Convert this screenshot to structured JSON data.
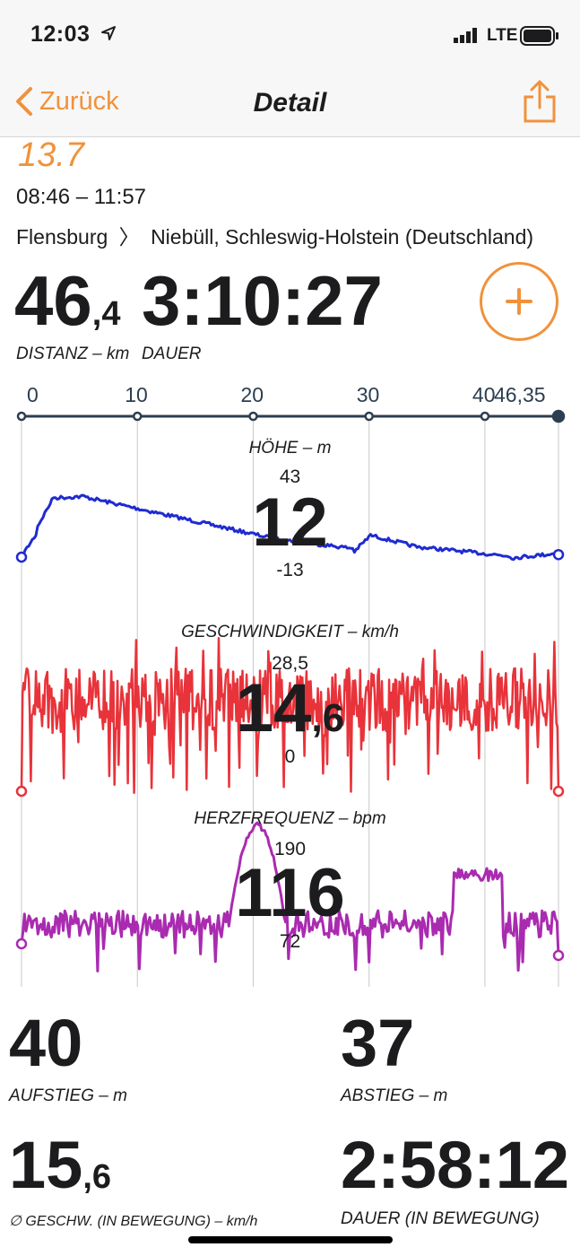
{
  "status": {
    "time": "12:03",
    "network": "LTE"
  },
  "nav": {
    "back_label": "Zurück",
    "title": "Detail"
  },
  "track": {
    "title": "13.7",
    "timespan": "08:46 – 11:57",
    "route_from": "Flensburg",
    "route_to": "Niebüll, Schleswig-Holstein (Deutschland)"
  },
  "summary": {
    "distance_int": "46",
    "distance_dec": ",4",
    "distance_label": "DISTANZ – km",
    "duration": "3:10:27",
    "duration_label": "DAUER"
  },
  "axis": {
    "ticks": [
      "0",
      "10",
      "20",
      "30",
      "40",
      "46,35"
    ]
  },
  "charts": {
    "elevation": {
      "label": "HÖHE – m",
      "max": "43",
      "value": "12",
      "min": "-13",
      "color": "#1f2bd1"
    },
    "speed": {
      "label": "GESCHWINDIGKEIT – km/h",
      "max": "28,5",
      "value_int": "14",
      "value_dec": ",6",
      "min": "0",
      "color": "#e8333a"
    },
    "heartrate": {
      "label": "HERZFREQUENZ – bpm",
      "max": "190",
      "value": "116",
      "min": "72",
      "color": "#a92bb0"
    }
  },
  "stats": {
    "ascent": "40",
    "ascent_label": "AUFSTIEG – m",
    "descent": "37",
    "descent_label": "ABSTIEG – m",
    "avg_speed_int": "15",
    "avg_speed_dec": ",6",
    "avg_speed_label": "∅ GESCHW. (IN BEWEGUNG) – km/h",
    "moving_time": "2:58:12",
    "moving_time_label": "DAUER (IN BEWEGUNG)"
  }
}
